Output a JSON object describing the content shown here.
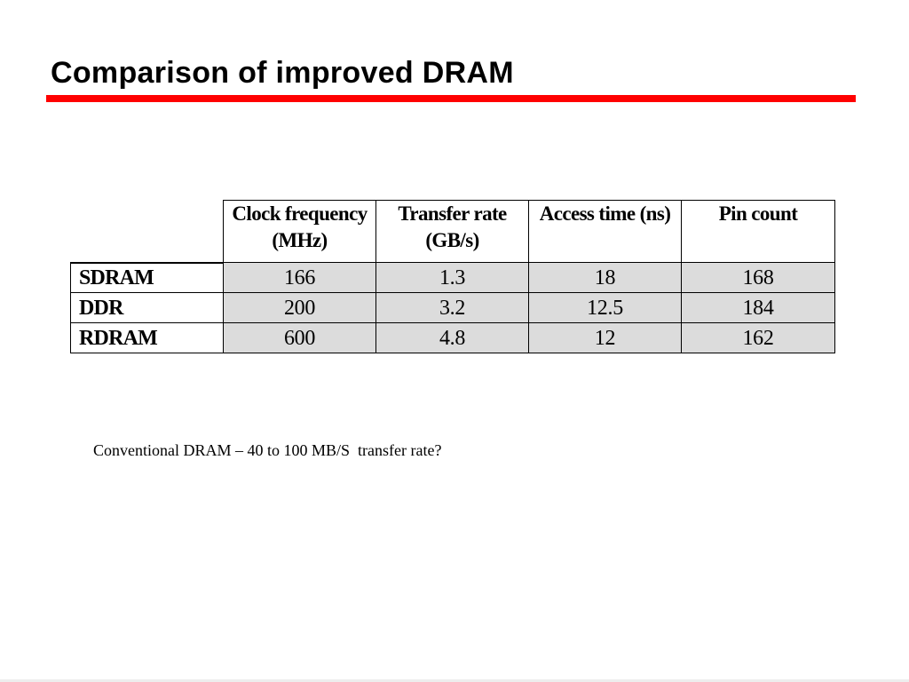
{
  "slide": {
    "title": "Comparison of improved DRAM",
    "note": "Conventional DRAM – 40 to 100 MB/S  transfer rate?",
    "accent_color": "#ff0000",
    "cell_shading_color": "#dcdcdc"
  },
  "table": {
    "headers": [
      [
        "Clock frequency",
        "(MHz)"
      ],
      [
        "Transfer rate",
        "(GB/s)"
      ],
      [
        "Access time (ns)"
      ],
      [
        "Pin count"
      ]
    ],
    "rows": [
      {
        "label": "SDRAM",
        "values": [
          "166",
          "1.3",
          "18",
          "168"
        ]
      },
      {
        "label": "DDR",
        "values": [
          "200",
          "3.2",
          "12.5",
          "184"
        ]
      },
      {
        "label": "RDRAM",
        "values": [
          "600",
          "4.8",
          "12",
          "162"
        ]
      }
    ]
  }
}
